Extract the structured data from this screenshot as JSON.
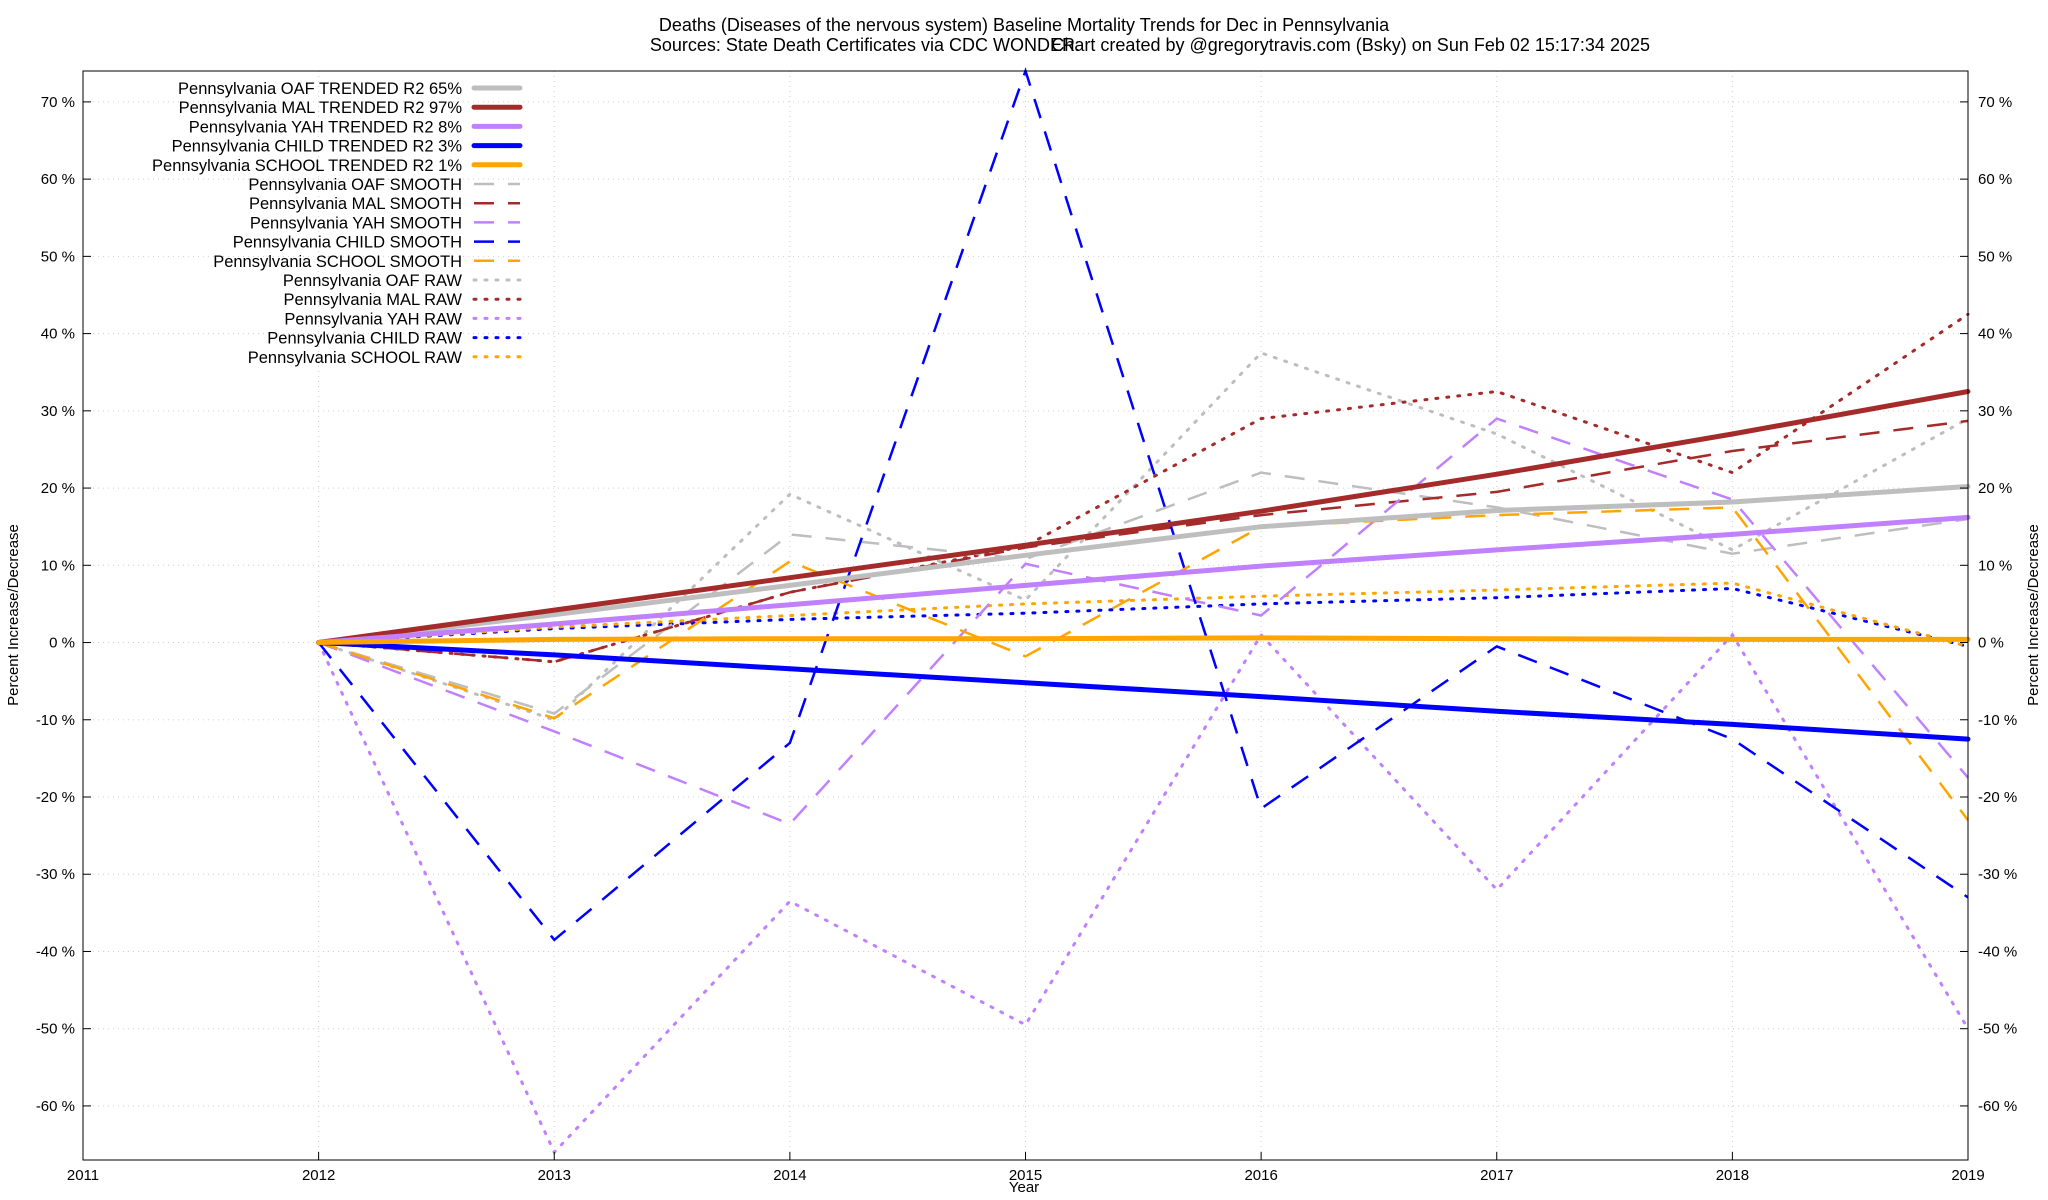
{
  "chart_data": {
    "type": "line",
    "title": "Deaths (Diseases of the nervous system)  Baseline Mortality Trends for Dec in Pennsylvania",
    "subtitle_left": "Sources: State Death Certificates via CDC WONDER.",
    "subtitle_right": "Chart created by @gregorytravis.com (Bsky) on Sun Feb 02 15:17:34 2025",
    "xlabel": "Year",
    "ylabel_left": "Percent Increase/Decrease",
    "ylabel_right": "Percent Increase/Decrease",
    "xlim": [
      2011,
      2019
    ],
    "ylim": [
      -67,
      74
    ],
    "x_ticks": [
      "2011",
      "2012",
      "2013",
      "2014",
      "2015",
      "2016",
      "2017",
      "2018",
      "2019"
    ],
    "y_ticks": [
      {
        "value": 70,
        "label": "70 %"
      },
      {
        "value": 60,
        "label": "60 %"
      },
      {
        "value": 50,
        "label": "50 %"
      },
      {
        "value": 40,
        "label": "40 %"
      },
      {
        "value": 30,
        "label": "30 %"
      },
      {
        "value": 20,
        "label": "20 %"
      },
      {
        "value": 10,
        "label": "10 %"
      },
      {
        "value": 0,
        "label": "0 %"
      },
      {
        "value": -10,
        "label": "-10 %"
      },
      {
        "value": -20,
        "label": "-20 %"
      },
      {
        "value": -30,
        "label": "-30 %"
      },
      {
        "value": -40,
        "label": "-40 %"
      },
      {
        "value": -50,
        "label": "-50 %"
      },
      {
        "value": -60,
        "label": "-60 %"
      }
    ],
    "grid": true,
    "legend_position": "top-left",
    "x": [
      2012,
      2013,
      2014,
      2015,
      2016,
      2017,
      2018,
      2019
    ],
    "series": [
      {
        "name": "Pennsylvania OAF TRENDED R2  65%",
        "style": "solid",
        "color": "#bebebe",
        "values": [
          0,
          3.6,
          7.4,
          11.3,
          15.0,
          17.1,
          18.2,
          20.2
        ]
      },
      {
        "name": "Pennsylvania MAL TRENDED R2  97%",
        "style": "solid",
        "color": "#a52a2a",
        "values": [
          0,
          4.2,
          8.4,
          12.6,
          17.0,
          21.8,
          27.0,
          32.5
        ]
      },
      {
        "name": "Pennsylvania YAH TRENDED R2  8%",
        "style": "solid",
        "color": "#c080ff",
        "values": [
          0,
          2.4,
          4.9,
          7.4,
          9.9,
          12.0,
          14.0,
          16.2
        ]
      },
      {
        "name": "Pennsylvania CHILD TRENDED R2  3%",
        "style": "solid",
        "color": "#0000ff",
        "values": [
          0,
          -1.6,
          -3.4,
          -5.2,
          -7.0,
          -8.9,
          -10.6,
          -12.5
        ]
      },
      {
        "name": "Pennsylvania SCHOOL TRENDED R2  1%",
        "style": "solid",
        "color": "#ffa500",
        "values": [
          0,
          0.4,
          0.5,
          0.5,
          0.6,
          0.5,
          0.4,
          0.4
        ]
      },
      {
        "name": "Pennsylvania OAF SMOOTH",
        "style": "dashed",
        "color": "#bebebe",
        "values": [
          0,
          -9.2,
          14.0,
          10.8,
          22.0,
          17.5,
          11.5,
          16.0
        ]
      },
      {
        "name": "Pennsylvania MAL SMOOTH",
        "style": "dashed",
        "color": "#a52a2a",
        "values": [
          0,
          -2.5,
          6.5,
          12.3,
          16.5,
          19.5,
          24.8,
          28.7
        ]
      },
      {
        "name": "Pennsylvania YAH SMOOTH",
        "style": "dashed",
        "color": "#c080ff",
        "values": [
          0,
          -11.5,
          -23.5,
          10.2,
          3.5,
          29.0,
          18.5,
          -17.5
        ]
      },
      {
        "name": "Pennsylvania CHILD SMOOTH",
        "style": "dashed",
        "color": "#0000ff",
        "values": [
          0,
          -38.5,
          -13.0,
          74.0,
          -21.5,
          -0.5,
          -12.5,
          -33.0
        ]
      },
      {
        "name": "Pennsylvania SCHOOL SMOOTH",
        "style": "dashed",
        "color": "#ffa500",
        "values": [
          0,
          -9.8,
          10.5,
          -1.8,
          15.0,
          16.5,
          17.5,
          -23.0
        ]
      },
      {
        "name": "Pennsylvania OAF RAW",
        "style": "dotted",
        "color": "#bebebe",
        "values": [
          0,
          -10.0,
          19.2,
          5.5,
          37.5,
          27.0,
          12.0,
          29.0
        ]
      },
      {
        "name": "Pennsylvania MAL RAW",
        "style": "dotted",
        "color": "#a52a2a",
        "values": [
          0,
          -2.5,
          6.5,
          12.5,
          29.0,
          32.5,
          22.0,
          42.5
        ]
      },
      {
        "name": "Pennsylvania YAH RAW",
        "style": "dotted",
        "color": "#c080ff",
        "values": [
          0,
          -66.0,
          -33.5,
          -49.5,
          1.0,
          -32.0,
          1.0,
          -50.0
        ]
      },
      {
        "name": "Pennsylvania CHILD RAW",
        "style": "dotted",
        "color": "#0000ff",
        "values": [
          0,
          1.8,
          3.0,
          3.8,
          5.0,
          5.8,
          7.0,
          -0.5
        ]
      },
      {
        "name": "Pennsylvania SCHOOL RAW",
        "style": "dotted",
        "color": "#ffa500",
        "values": [
          0,
          2.0,
          3.5,
          5.0,
          6.0,
          6.8,
          7.7,
          -0.5
        ]
      }
    ]
  }
}
